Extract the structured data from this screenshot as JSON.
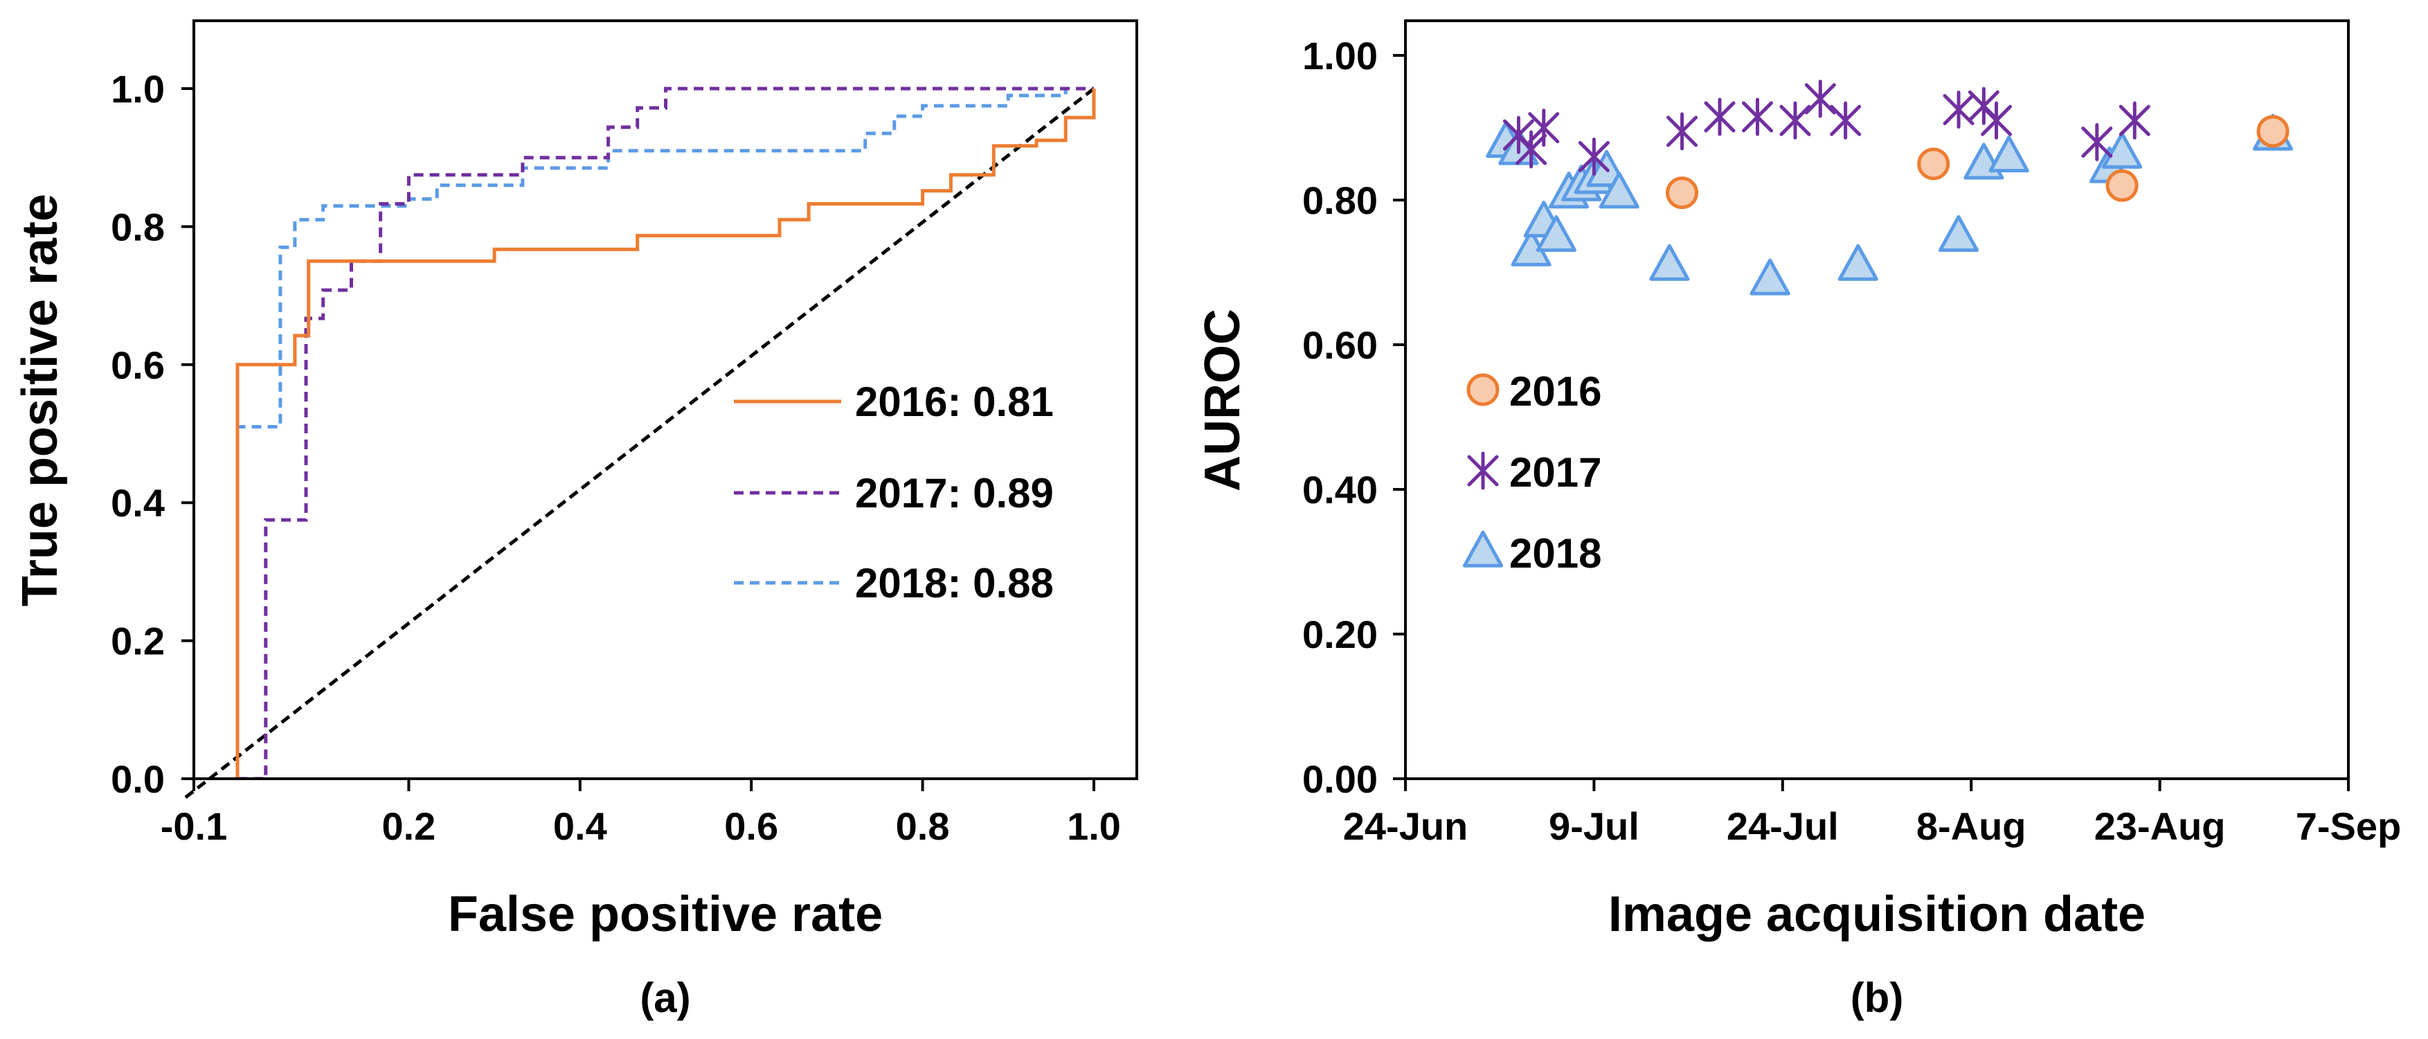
{
  "colors": {
    "y2016": "#ED7D31",
    "y2016_fill": "#F8CBAD",
    "y2017": "#7030A0",
    "y2018": "#5B9BE6",
    "y2018_fill": "#BDD7EE",
    "chance": "#000000",
    "axis": "#000000"
  },
  "chart_data": [
    {
      "type": "line",
      "panel_label": "(a)",
      "title": "",
      "xlabel": "False positive rate",
      "ylabel": "True positive rate",
      "xlim": [
        -0.1,
        1.1
      ],
      "ylim": [
        0.0,
        1.1
      ],
      "xticks": [
        -0.1,
        0.2,
        0.4,
        0.6,
        0.8,
        1.0
      ],
      "xtick_labels": [
        "-0.1",
        "0.2",
        "0.4",
        "0.6",
        "0.8",
        "1.0"
      ],
      "yticks": [
        0.0,
        0.2,
        0.4,
        0.6,
        0.8,
        1.0
      ],
      "ytick_labels": [
        "0.0",
        "0.2",
        "0.4",
        "0.6",
        "0.8",
        "1.0"
      ],
      "grid": false,
      "legend_position": "center-right",
      "chance_line": {
        "name": "chance",
        "x": [
          0.0,
          1.0
        ],
        "y": [
          0.0,
          1.0
        ],
        "style": "dashed"
      },
      "series": [
        {
          "name": "2016",
          "legend_label": "2016: 0.81",
          "style": "solid",
          "color_key": "y2016",
          "x": [
            0.0,
            0.0,
            0.067,
            0.067,
            0.083,
            0.083,
            0.3,
            0.3,
            0.467,
            0.467,
            0.633,
            0.633,
            0.667,
            0.667,
            0.8,
            0.8,
            0.833,
            0.833,
            0.883,
            0.883,
            0.933,
            0.933,
            0.967,
            0.967,
            1.0,
            1.0
          ],
          "y": [
            0.0,
            0.6,
            0.6,
            0.642,
            0.642,
            0.75,
            0.75,
            0.767,
            0.767,
            0.787,
            0.787,
            0.81,
            0.81,
            0.833,
            0.833,
            0.852,
            0.852,
            0.875,
            0.875,
            0.917,
            0.917,
            0.925,
            0.925,
            0.958,
            0.958,
            1.0
          ]
        },
        {
          "name": "2017",
          "legend_label": "2017: 0.89",
          "style": "dashed",
          "color_key": "y2017",
          "x": [
            0.0,
            0.033,
            0.033,
            0.08,
            0.08,
            0.1,
            0.1,
            0.133,
            0.133,
            0.167,
            0.167,
            0.2,
            0.2,
            0.333,
            0.333,
            0.433,
            0.433,
            0.467,
            0.467,
            0.5,
            0.5,
            0.533,
            0.533,
            1.0
          ],
          "y": [
            0.0,
            0.0,
            0.375,
            0.375,
            0.667,
            0.667,
            0.708,
            0.708,
            0.75,
            0.75,
            0.833,
            0.833,
            0.875,
            0.875,
            0.9,
            0.9,
            0.944,
            0.944,
            0.972,
            0.972,
            1.0,
            1.0,
            1.0,
            1.0
          ]
        },
        {
          "name": "2018",
          "legend_label": "2018: 0.88",
          "style": "dashed",
          "color_key": "y2018",
          "x": [
            0.0,
            0.0,
            0.05,
            0.05,
            0.067,
            0.067,
            0.1,
            0.1,
            0.2,
            0.2,
            0.233,
            0.233,
            0.333,
            0.333,
            0.433,
            0.433,
            0.733,
            0.733,
            0.767,
            0.767,
            0.8,
            0.8,
            0.9,
            0.9,
            0.967,
            0.967,
            1.0
          ],
          "y": [
            0.0,
            0.51,
            0.51,
            0.77,
            0.77,
            0.81,
            0.81,
            0.83,
            0.83,
            0.84,
            0.84,
            0.86,
            0.86,
            0.885,
            0.885,
            0.91,
            0.91,
            0.935,
            0.935,
            0.96,
            0.96,
            0.975,
            0.975,
            0.99,
            0.99,
            1.0,
            1.0
          ]
        }
      ]
    },
    {
      "type": "scatter",
      "panel_label": "(b)",
      "title": "",
      "xlabel": "Image acquisition date",
      "ylabel": "AUROC",
      "xaxis_unit": "days after 24-Jun",
      "xlim": [
        0,
        75
      ],
      "ylim": [
        0.0,
        1.0
      ],
      "xticks": [
        0,
        15,
        30,
        45,
        60,
        75
      ],
      "xtick_labels": [
        "24-Jun",
        "9-Jul",
        "24-Jul",
        "8-Aug",
        "23-Aug",
        "7-Sep"
      ],
      "yticks": [
        0.0,
        0.2,
        0.4,
        0.6,
        0.8,
        1.0
      ],
      "ytick_labels": [
        "0.00",
        "0.20",
        "0.40",
        "0.60",
        "0.80",
        "1.00"
      ],
      "grid": false,
      "legend_position": "center-left",
      "series": [
        {
          "name": "2016",
          "marker": "circle",
          "color_key": "y2016",
          "fill_key": "y2016_fill",
          "x": [
            22,
            42,
            57,
            69
          ],
          "y": [
            0.81,
            0.85,
            0.82,
            0.895
          ]
        },
        {
          "name": "2017",
          "marker": "asterisk",
          "color_key": "y2017",
          "x": [
            9,
            10,
            11,
            15,
            22,
            25,
            28,
            31,
            33,
            35,
            44,
            46,
            47,
            55,
            58
          ],
          "y": [
            0.89,
            0.87,
            0.9,
            0.86,
            0.895,
            0.915,
            0.915,
            0.91,
            0.94,
            0.91,
            0.925,
            0.93,
            0.91,
            0.88,
            0.91
          ]
        },
        {
          "name": "2018",
          "marker": "triangle",
          "color_key": "y2018",
          "fill_key": "y2018_fill",
          "x": [
            8,
            9,
            10,
            11,
            12,
            13,
            14,
            15,
            16,
            17,
            21,
            29,
            36,
            44,
            46,
            48,
            56,
            57,
            69
          ],
          "y": [
            0.88,
            0.87,
            0.73,
            0.77,
            0.75,
            0.81,
            0.82,
            0.83,
            0.84,
            0.81,
            0.71,
            0.69,
            0.71,
            0.75,
            0.85,
            0.86,
            0.845,
            0.865,
            0.89
          ]
        }
      ]
    }
  ]
}
